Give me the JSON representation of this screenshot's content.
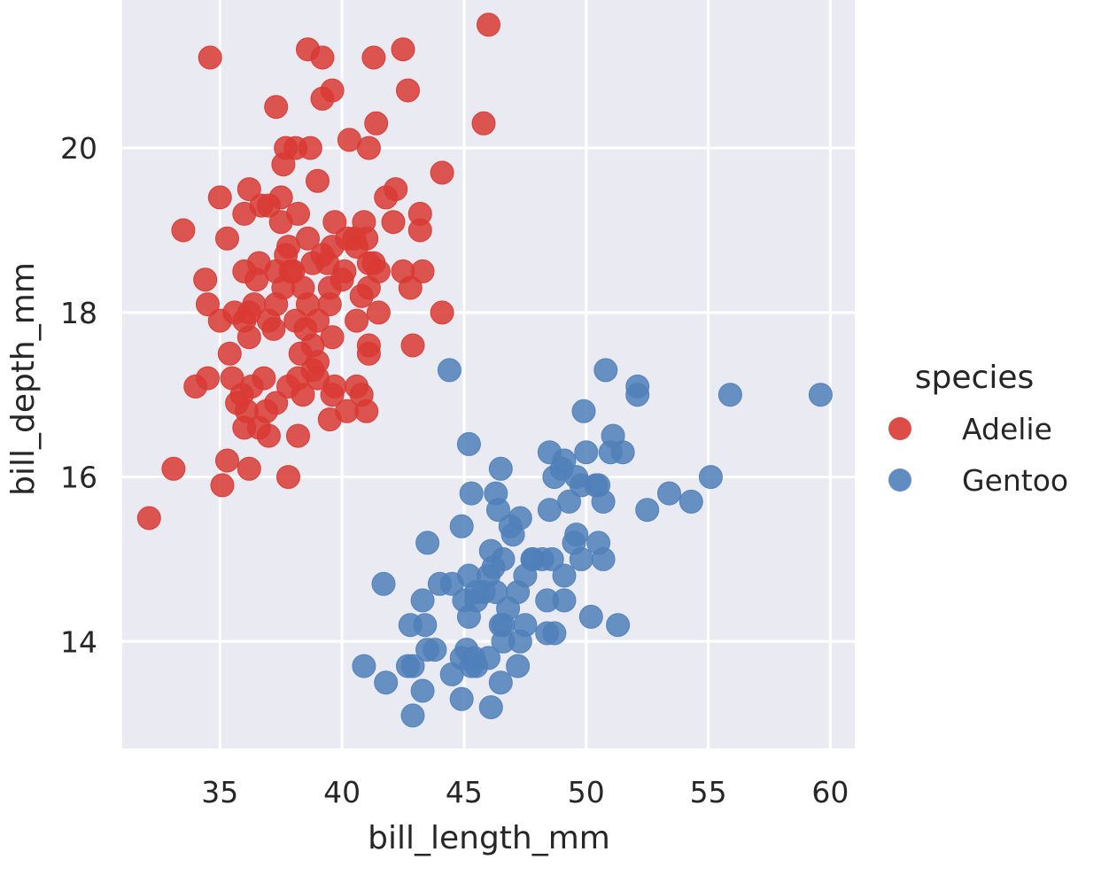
{
  "chart_data": {
    "type": "scatter",
    "title": "",
    "xlabel": "bill_length_mm",
    "ylabel": "bill_depth_mm",
    "xlim": [
      31,
      61
    ],
    "ylim": [
      12.7,
      21.8
    ],
    "xticks": [
      35,
      40,
      45,
      50,
      55,
      60
    ],
    "yticks": [
      14,
      16,
      18,
      20
    ],
    "grid": true,
    "legend_title": "species",
    "legend_position": "right",
    "series": [
      {
        "name": "Adelie",
        "color": "#d93a33",
        "points": [
          [
            46.0,
            21.5
          ],
          [
            34.6,
            21.1
          ],
          [
            38.6,
            21.2
          ],
          [
            39.2,
            21.1
          ],
          [
            41.3,
            21.1
          ],
          [
            42.5,
            21.2
          ],
          [
            39.2,
            20.6
          ],
          [
            39.6,
            20.7
          ],
          [
            42.7,
            20.7
          ],
          [
            37.3,
            20.5
          ],
          [
            45.8,
            20.3
          ],
          [
            41.4,
            20.3
          ],
          [
            37.7,
            20.0
          ],
          [
            38.1,
            20.0
          ],
          [
            38.7,
            20.0
          ],
          [
            40.3,
            20.1
          ],
          [
            41.1,
            20.0
          ],
          [
            37.6,
            19.8
          ],
          [
            39.0,
            19.6
          ],
          [
            44.1,
            19.7
          ],
          [
            36.2,
            19.5
          ],
          [
            35.0,
            19.4
          ],
          [
            36.7,
            19.3
          ],
          [
            37.5,
            19.4
          ],
          [
            42.2,
            19.5
          ],
          [
            41.8,
            19.4
          ],
          [
            36.0,
            19.2
          ],
          [
            37.0,
            19.3
          ],
          [
            38.2,
            19.2
          ],
          [
            37.5,
            19.1
          ],
          [
            39.7,
            19.1
          ],
          [
            40.9,
            19.1
          ],
          [
            42.1,
            19.1
          ],
          [
            43.2,
            19.2
          ],
          [
            33.5,
            19.0
          ],
          [
            35.3,
            18.9
          ],
          [
            38.6,
            18.9
          ],
          [
            40.2,
            18.9
          ],
          [
            41.0,
            18.9
          ],
          [
            43.2,
            19.0
          ],
          [
            37.8,
            18.8
          ],
          [
            39.6,
            18.8
          ],
          [
            40.6,
            18.8
          ],
          [
            36.6,
            18.6
          ],
          [
            38.8,
            18.6
          ],
          [
            41.5,
            18.5
          ],
          [
            36.0,
            18.5
          ],
          [
            36.5,
            18.4
          ],
          [
            37.3,
            18.5
          ],
          [
            38.0,
            18.5
          ],
          [
            39.4,
            18.6
          ],
          [
            40.1,
            18.5
          ],
          [
            42.5,
            18.5
          ],
          [
            43.3,
            18.5
          ],
          [
            41.1,
            18.6
          ],
          [
            34.4,
            18.4
          ],
          [
            38.4,
            18.3
          ],
          [
            40.0,
            18.4
          ],
          [
            37.6,
            18.3
          ],
          [
            39.5,
            18.3
          ],
          [
            42.8,
            18.3
          ],
          [
            40.8,
            18.2
          ],
          [
            41.1,
            18.3
          ],
          [
            36.4,
            18.1
          ],
          [
            37.3,
            18.1
          ],
          [
            38.6,
            18.1
          ],
          [
            34.5,
            18.1
          ],
          [
            39.5,
            18.1
          ],
          [
            41.5,
            18.0
          ],
          [
            35.0,
            17.9
          ],
          [
            36.0,
            17.9
          ],
          [
            37.0,
            17.9
          ],
          [
            38.1,
            17.9
          ],
          [
            39.0,
            17.9
          ],
          [
            40.6,
            17.9
          ],
          [
            44.1,
            18.0
          ],
          [
            36.2,
            17.7
          ],
          [
            37.2,
            17.8
          ],
          [
            38.8,
            17.6
          ],
          [
            39.6,
            17.7
          ],
          [
            41.1,
            17.6
          ],
          [
            42.9,
            17.6
          ],
          [
            35.4,
            17.5
          ],
          [
            38.3,
            17.5
          ],
          [
            38.8,
            17.3
          ],
          [
            41.1,
            17.5
          ],
          [
            39.0,
            17.4
          ],
          [
            35.5,
            17.2
          ],
          [
            36.8,
            17.2
          ],
          [
            37.8,
            17.1
          ],
          [
            38.2,
            17.2
          ],
          [
            39.7,
            17.1
          ],
          [
            40.6,
            17.1
          ],
          [
            34.0,
            17.1
          ],
          [
            35.9,
            17.0
          ],
          [
            36.3,
            17.1
          ],
          [
            39.0,
            17.2
          ],
          [
            40.8,
            17.0
          ],
          [
            36.1,
            16.8
          ],
          [
            37.3,
            16.9
          ],
          [
            39.6,
            17.0
          ],
          [
            38.4,
            17.0
          ],
          [
            35.7,
            16.9
          ],
          [
            36.9,
            16.8
          ],
          [
            40.2,
            16.8
          ],
          [
            41.0,
            16.8
          ],
          [
            36.0,
            16.6
          ],
          [
            36.6,
            16.6
          ],
          [
            37.0,
            16.5
          ],
          [
            38.2,
            16.5
          ],
          [
            39.5,
            16.7
          ],
          [
            33.1,
            16.1
          ],
          [
            35.3,
            16.2
          ],
          [
            36.2,
            16.1
          ],
          [
            37.8,
            16.0
          ],
          [
            35.1,
            15.9
          ],
          [
            32.1,
            15.5
          ],
          [
            34.5,
            17.2
          ],
          [
            36.2,
            18.0
          ],
          [
            35.6,
            18.0
          ],
          [
            38.5,
            17.8
          ],
          [
            37.9,
            18.5
          ],
          [
            40.5,
            18.9
          ],
          [
            41.3,
            18.6
          ],
          [
            37.7,
            18.7
          ],
          [
            39.2,
            18.7
          ]
        ]
      },
      {
        "name": "Gentoo",
        "color": "#5080ba",
        "points": [
          [
            44.4,
            17.3
          ],
          [
            50.8,
            17.3
          ],
          [
            52.1,
            17.1
          ],
          [
            52.1,
            17.0
          ],
          [
            55.9,
            17.0
          ],
          [
            59.6,
            17.0
          ],
          [
            49.9,
            16.8
          ],
          [
            51.1,
            16.5
          ],
          [
            45.2,
            16.4
          ],
          [
            51.0,
            16.3
          ],
          [
            48.5,
            16.3
          ],
          [
            50.0,
            16.3
          ],
          [
            51.5,
            16.3
          ],
          [
            46.5,
            16.1
          ],
          [
            49.1,
            16.2
          ],
          [
            49.6,
            16.0
          ],
          [
            50.4,
            15.9
          ],
          [
            55.1,
            16.0
          ],
          [
            48.7,
            16.0
          ],
          [
            50.5,
            15.9
          ],
          [
            49.8,
            15.9
          ],
          [
            45.3,
            15.8
          ],
          [
            46.3,
            15.8
          ],
          [
            53.4,
            15.8
          ],
          [
            54.3,
            15.7
          ],
          [
            46.4,
            15.6
          ],
          [
            52.5,
            15.6
          ],
          [
            48.5,
            15.6
          ],
          [
            50.7,
            15.7
          ],
          [
            49.3,
            15.7
          ],
          [
            47.3,
            15.5
          ],
          [
            44.9,
            15.4
          ],
          [
            46.9,
            15.4
          ],
          [
            47.0,
            15.3
          ],
          [
            49.5,
            15.2
          ],
          [
            50.5,
            15.2
          ],
          [
            43.5,
            15.2
          ],
          [
            48.2,
            15.0
          ],
          [
            47.8,
            15.0
          ],
          [
            49.8,
            15.0
          ],
          [
            50.7,
            15.0
          ],
          [
            46.1,
            15.1
          ],
          [
            46.6,
            15.0
          ],
          [
            48.6,
            15.0
          ],
          [
            47.5,
            14.8
          ],
          [
            46.0,
            14.8
          ],
          [
            49.1,
            14.8
          ],
          [
            45.2,
            14.8
          ],
          [
            41.7,
            14.7
          ],
          [
            44.0,
            14.7
          ],
          [
            46.3,
            14.6
          ],
          [
            45.5,
            14.6
          ],
          [
            45.5,
            14.5
          ],
          [
            46.8,
            14.4
          ],
          [
            48.4,
            14.5
          ],
          [
            49.1,
            14.5
          ],
          [
            43.3,
            14.5
          ],
          [
            45.2,
            14.3
          ],
          [
            45.0,
            14.5
          ],
          [
            47.2,
            14.6
          ],
          [
            50.2,
            14.3
          ],
          [
            43.4,
            14.2
          ],
          [
            47.5,
            14.2
          ],
          [
            51.3,
            14.2
          ],
          [
            42.8,
            14.2
          ],
          [
            46.5,
            14.2
          ],
          [
            48.4,
            14.1
          ],
          [
            48.7,
            14.1
          ],
          [
            47.3,
            14.0
          ],
          [
            46.0,
            13.8
          ],
          [
            43.5,
            13.9
          ],
          [
            43.8,
            13.9
          ],
          [
            45.1,
            13.9
          ],
          [
            45.4,
            13.8
          ],
          [
            46.6,
            14.0
          ],
          [
            44.9,
            13.8
          ],
          [
            45.3,
            13.7
          ],
          [
            40.9,
            13.7
          ],
          [
            42.7,
            13.7
          ],
          [
            42.9,
            13.7
          ],
          [
            47.2,
            13.7
          ],
          [
            44.5,
            13.6
          ],
          [
            41.8,
            13.5
          ],
          [
            46.5,
            13.5
          ],
          [
            43.3,
            13.4
          ],
          [
            44.9,
            13.3
          ],
          [
            46.1,
            13.2
          ],
          [
            42.9,
            13.1
          ],
          [
            45.5,
            13.7
          ],
          [
            46.2,
            14.9
          ],
          [
            47.8,
            15.0
          ],
          [
            49.0,
            16.1
          ],
          [
            49.6,
            15.3
          ],
          [
            45.8,
            14.6
          ],
          [
            46.6,
            14.2
          ],
          [
            44.5,
            14.7
          ]
        ]
      }
    ]
  }
}
